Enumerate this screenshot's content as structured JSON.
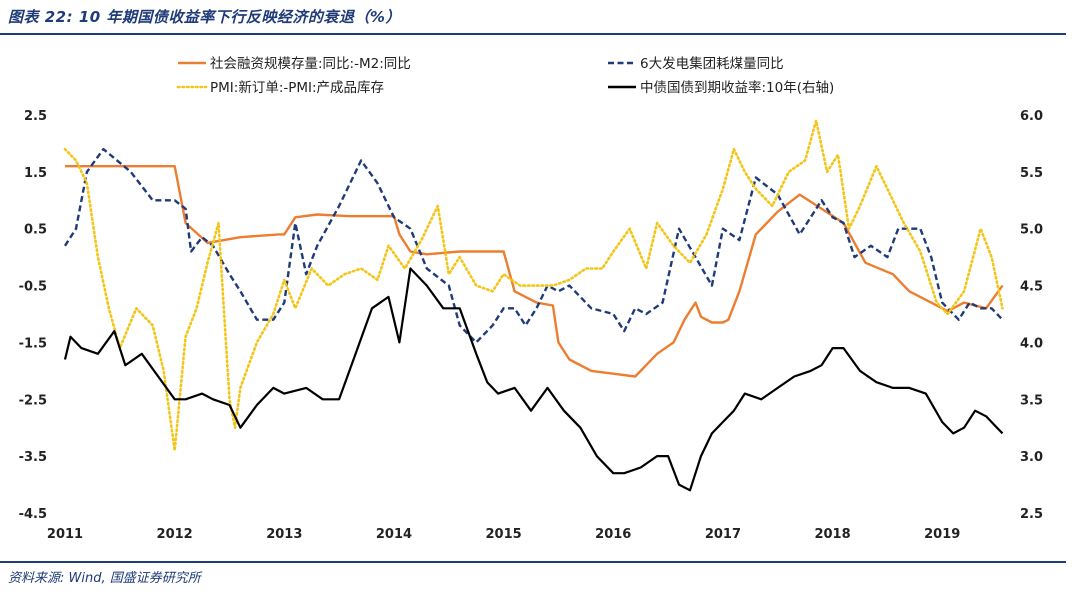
{
  "header": {
    "title": "图表 22:  10 年期国债收益率下行反映经济的衰退（%）"
  },
  "footer": {
    "source": "资料来源:  Wind, 国盛证券研究所"
  },
  "chart_data": {
    "type": "line",
    "title": "",
    "xlabel": "",
    "ylabel": "",
    "x_ticks": [
      "2011",
      "2012",
      "2013",
      "2014",
      "2015",
      "2016",
      "2017",
      "2018",
      "2019"
    ],
    "xlim": [
      2011.0,
      2019.6
    ],
    "ylim_left": [
      -4.5,
      2.5
    ],
    "y_ticks_left": [
      "2.5",
      "1.5",
      "0.5",
      "-0.5",
      "-1.5",
      "-2.5",
      "-3.5",
      "-4.5"
    ],
    "ylim_right": [
      2.5,
      6.0
    ],
    "y_ticks_right": [
      "6.0",
      "5.5",
      "5.0",
      "4.5",
      "4.0",
      "3.5",
      "3.0",
      "2.5"
    ],
    "grid": false,
    "legend_position": "top",
    "series": [
      {
        "name": "社会融资规模存量:同比:-M2:同比",
        "axis": "left",
        "color": "#ed7d31",
        "style": "solid",
        "x": [
          2011.0,
          2011.9,
          2011.95,
          2012.0,
          2012.1,
          2012.3,
          2012.6,
          2012.95,
          2013.0,
          2013.1,
          2013.3,
          2013.6,
          2013.9,
          2014.0,
          2014.05,
          2014.15,
          2014.3,
          2014.6,
          2014.9,
          2015.0,
          2015.1,
          2015.3,
          2015.45,
          2015.5,
          2015.6,
          2015.8,
          2016.0,
          2016.2,
          2016.4,
          2016.55,
          2016.65,
          2016.75,
          2016.8,
          2016.9,
          2017.0,
          2017.05,
          2017.15,
          2017.3,
          2017.5,
          2017.7,
          2017.9,
          2018.1,
          2018.3,
          2018.55,
          2018.7,
          2018.9,
          2019.05,
          2019.2,
          2019.4,
          2019.55
        ],
        "y": [
          1.6,
          1.6,
          1.6,
          1.6,
          0.6,
          0.25,
          0.35,
          0.4,
          0.4,
          0.7,
          0.75,
          0.72,
          0.72,
          0.72,
          0.4,
          0.1,
          0.05,
          0.1,
          0.1,
          0.1,
          -0.6,
          -0.8,
          -0.85,
          -1.5,
          -1.8,
          -2.0,
          -2.05,
          -2.1,
          -1.7,
          -1.5,
          -1.1,
          -0.8,
          -1.05,
          -1.15,
          -1.15,
          -1.1,
          -0.6,
          0.4,
          0.8,
          1.1,
          0.85,
          0.6,
          -0.1,
          -0.3,
          -0.6,
          -0.8,
          -0.95,
          -0.8,
          -0.9,
          -0.5
        ]
      },
      {
        "name": "6大发电集团耗煤量同比",
        "axis": "left",
        "color": "#1f3b78",
        "style": "dashed",
        "x": [
          2011.0,
          2011.1,
          2011.2,
          2011.35,
          2011.6,
          2011.8,
          2012.0,
          2012.1,
          2012.15,
          2012.25,
          2012.35,
          2012.5,
          2012.6,
          2012.75,
          2012.9,
          2013.0,
          2013.1,
          2013.2,
          2013.3,
          2013.5,
          2013.7,
          2013.85,
          2014.0,
          2014.15,
          2014.3,
          2014.5,
          2014.6,
          2014.75,
          2014.9,
          2015.0,
          2015.1,
          2015.2,
          2015.3,
          2015.4,
          2015.5,
          2015.6,
          2015.8,
          2016.0,
          2016.1,
          2016.2,
          2016.3,
          2016.45,
          2016.6,
          2016.75,
          2016.9,
          2017.0,
          2017.15,
          2017.3,
          2017.5,
          2017.7,
          2017.9,
          2018.0,
          2018.1,
          2018.2,
          2018.35,
          2018.5,
          2018.6,
          2018.8,
          2018.9,
          2019.0,
          2019.15,
          2019.25,
          2019.35,
          2019.45,
          2019.55
        ],
        "y": [
          0.2,
          0.5,
          1.5,
          1.9,
          1.5,
          1.0,
          1.0,
          0.85,
          0.1,
          0.35,
          0.2,
          -0.3,
          -0.6,
          -1.1,
          -1.1,
          -0.8,
          0.6,
          -0.3,
          0.2,
          0.9,
          1.7,
          1.3,
          0.7,
          0.5,
          -0.2,
          -0.5,
          -1.2,
          -1.5,
          -1.2,
          -0.9,
          -0.9,
          -1.2,
          -0.9,
          -0.5,
          -0.6,
          -0.5,
          -0.9,
          -1.0,
          -1.3,
          -0.9,
          -1.0,
          -0.8,
          0.5,
          0.0,
          -0.5,
          0.5,
          0.3,
          1.4,
          1.1,
          0.4,
          1.0,
          0.7,
          0.6,
          0.0,
          0.2,
          0.0,
          0.5,
          0.5,
          0.0,
          -0.8,
          -1.1,
          -0.8,
          -0.9,
          -0.9,
          -1.1
        ]
      },
      {
        "name": "PMI:新订单:-PMI:产成品库存",
        "axis": "left",
        "color": "#f2c519",
        "style": "dotted",
        "x": [
          2011.0,
          2011.1,
          2011.2,
          2011.3,
          2011.4,
          2011.5,
          2011.65,
          2011.8,
          2011.9,
          2012.0,
          2012.1,
          2012.2,
          2012.3,
          2012.4,
          2012.5,
          2012.55,
          2012.6,
          2012.75,
          2012.9,
          2013.0,
          2013.1,
          2013.25,
          2013.4,
          2013.55,
          2013.7,
          2013.85,
          2013.95,
          2014.1,
          2014.25,
          2014.4,
          2014.5,
          2014.6,
          2014.75,
          2014.9,
          2015.0,
          2015.15,
          2015.3,
          2015.45,
          2015.6,
          2015.75,
          2015.9,
          2016.0,
          2016.15,
          2016.3,
          2016.4,
          2016.55,
          2016.7,
          2016.85,
          2017.0,
          2017.1,
          2017.2,
          2017.3,
          2017.45,
          2017.6,
          2017.75,
          2017.85,
          2017.95,
          2018.05,
          2018.15,
          2018.25,
          2018.4,
          2018.5,
          2018.65,
          2018.8,
          2018.95,
          2019.05,
          2019.2,
          2019.35,
          2019.45,
          2019.55
        ],
        "y": [
          1.9,
          1.7,
          1.3,
          0.0,
          -0.9,
          -1.6,
          -0.9,
          -1.2,
          -2.0,
          -3.4,
          -1.4,
          -0.9,
          -0.1,
          0.6,
          -2.5,
          -3.0,
          -2.3,
          -1.5,
          -1.0,
          -0.4,
          -0.9,
          -0.2,
          -0.5,
          -0.3,
          -0.2,
          -0.4,
          0.2,
          -0.2,
          0.3,
          0.9,
          -0.3,
          0.0,
          -0.5,
          -0.6,
          -0.3,
          -0.5,
          -0.5,
          -0.5,
          -0.4,
          -0.2,
          -0.2,
          0.1,
          0.5,
          -0.2,
          0.6,
          0.2,
          -0.1,
          0.4,
          1.2,
          1.9,
          1.5,
          1.2,
          0.9,
          1.5,
          1.7,
          2.4,
          1.5,
          1.8,
          0.5,
          0.9,
          1.6,
          1.2,
          0.6,
          0.1,
          -0.8,
          -1.0,
          -0.6,
          0.5,
          0.0,
          -0.9
        ]
      },
      {
        "name": "中债国债到期收益率:10年(右轴)",
        "axis": "right",
        "color": "#000000",
        "style": "solid",
        "x": [
          2011.0,
          2011.05,
          2011.15,
          2011.3,
          2011.45,
          2011.55,
          2011.7,
          2011.85,
          2012.0,
          2012.1,
          2012.25,
          2012.35,
          2012.5,
          2012.6,
          2012.75,
          2012.9,
          2013.0,
          2013.2,
          2013.35,
          2013.5,
          2013.65,
          2013.8,
          2013.95,
          2014.05,
          2014.15,
          2014.3,
          2014.45,
          2014.6,
          2014.75,
          2014.85,
          2014.95,
          2015.1,
          2015.25,
          2015.4,
          2015.55,
          2015.7,
          2015.85,
          2016.0,
          2016.1,
          2016.25,
          2016.4,
          2016.5,
          2016.6,
          2016.7,
          2016.8,
          2016.9,
          2017.0,
          2017.1,
          2017.2,
          2017.35,
          2017.5,
          2017.65,
          2017.8,
          2017.9,
          2018.0,
          2018.1,
          2018.25,
          2018.4,
          2018.55,
          2018.7,
          2018.85,
          2019.0,
          2019.1,
          2019.2,
          2019.3,
          2019.4,
          2019.5,
          2019.55
        ],
        "y": [
          3.85,
          4.05,
          3.95,
          3.9,
          4.1,
          3.8,
          3.9,
          3.7,
          3.5,
          3.5,
          3.55,
          3.5,
          3.45,
          3.25,
          3.45,
          3.6,
          3.55,
          3.6,
          3.5,
          3.5,
          3.9,
          4.3,
          4.4,
          4.0,
          4.65,
          4.5,
          4.3,
          4.3,
          3.9,
          3.65,
          3.55,
          3.6,
          3.4,
          3.6,
          3.4,
          3.25,
          3.0,
          2.85,
          2.85,
          2.9,
          3.0,
          3.0,
          2.75,
          2.7,
          3.0,
          3.2,
          3.3,
          3.4,
          3.55,
          3.5,
          3.6,
          3.7,
          3.75,
          3.8,
          3.95,
          3.95,
          3.75,
          3.65,
          3.6,
          3.6,
          3.55,
          3.3,
          3.2,
          3.25,
          3.4,
          3.35,
          3.25,
          3.2
        ]
      }
    ]
  }
}
